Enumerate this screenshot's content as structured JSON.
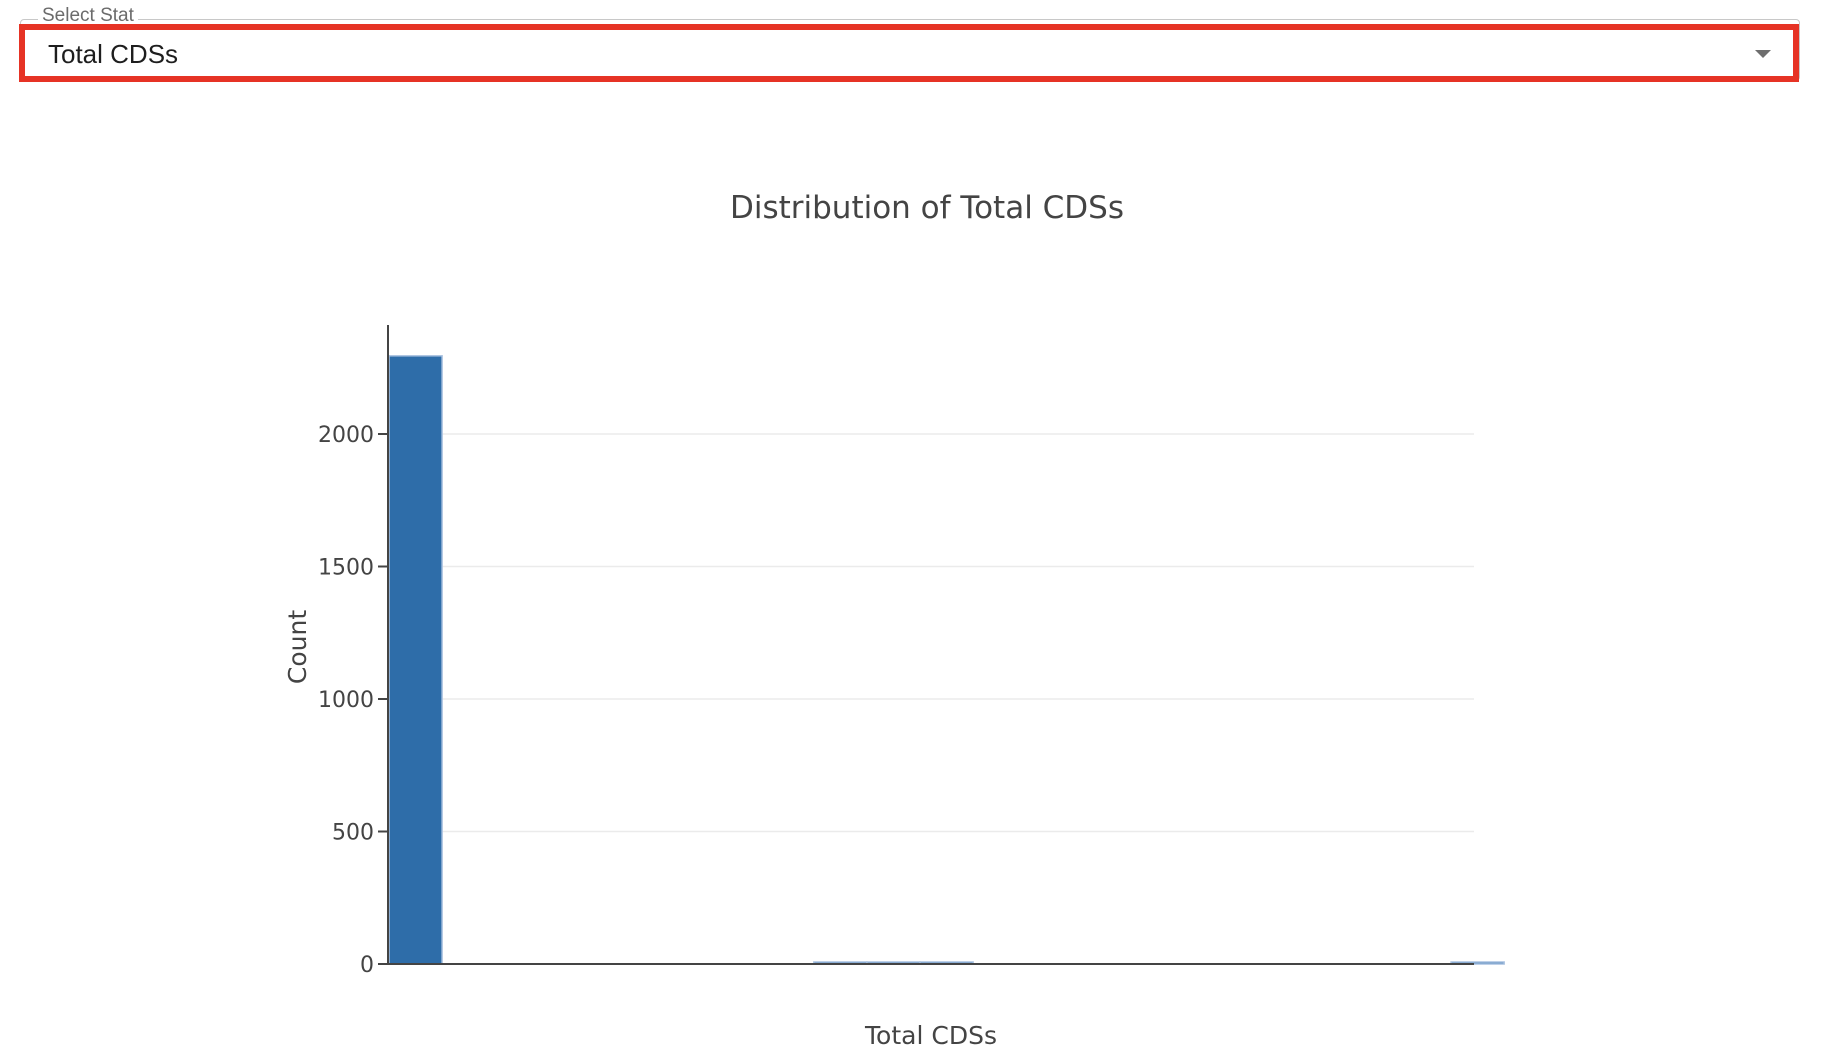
{
  "control": {
    "legend": "Select Stat",
    "selected_value": "Total CDSs",
    "highlight_color": "#e63325"
  },
  "chart_data": {
    "type": "bar",
    "title": "Distribution of Total CDSs",
    "xlabel": "Total CDSs",
    "ylabel": "Count",
    "ylim": [
      0,
      2420
    ],
    "yticks": [
      0,
      500,
      1000,
      1500,
      2000
    ],
    "ytick_labels": [
      "0",
      "500",
      "1000",
      "1500",
      "2000"
    ],
    "grid": true,
    "legend": "none",
    "bar_color": "#2e6da9",
    "bins": 21,
    "values": [
      2295,
      0,
      0,
      0,
      0,
      0,
      0,
      0,
      1,
      1,
      2,
      0,
      0,
      0,
      0,
      0,
      0,
      0,
      0,
      0,
      1
    ]
  }
}
